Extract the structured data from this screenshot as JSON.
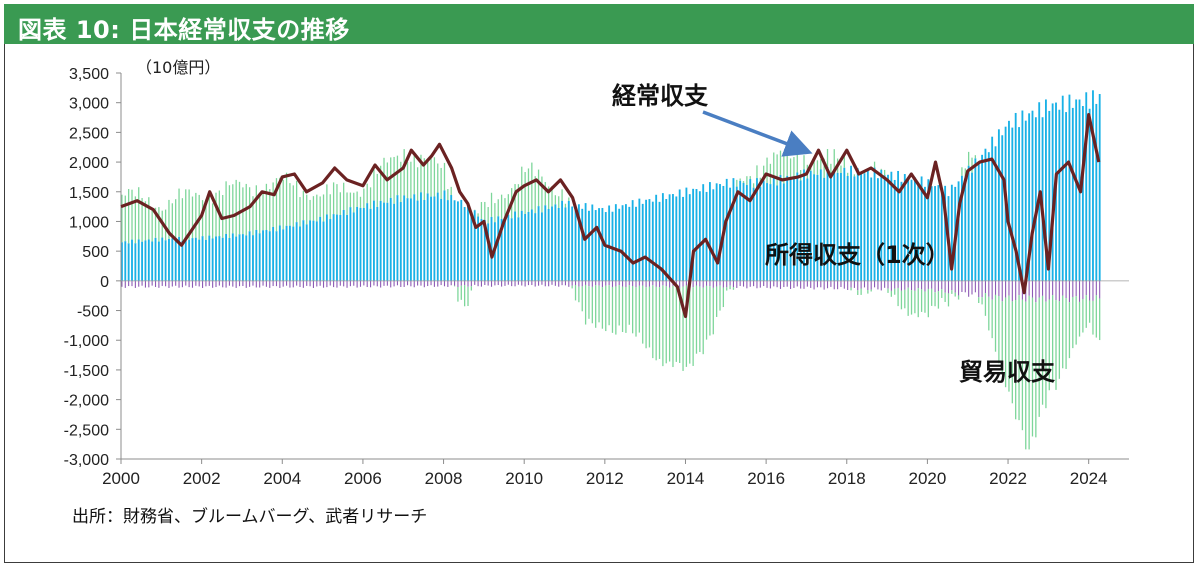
{
  "header": {
    "title": "図表 10: 日本経常収支の推移"
  },
  "source": "出所：財務省、ブルームバーグ、武者リサーチ",
  "chart_data": {
    "type": "bar",
    "unit_label": "（10億円）",
    "ylim": [
      -3000,
      3500
    ],
    "yticks": [
      -3000,
      -2500,
      -2000,
      -1500,
      -1000,
      -500,
      0,
      500,
      1000,
      1500,
      2000,
      2500,
      3000,
      3500
    ],
    "ytick_labels": [
      "-3,000",
      "-2,500",
      "-2,000",
      "-1,500",
      "-1,000",
      "-500",
      "0",
      "500",
      "1,000",
      "1,500",
      "2,000",
      "2,500",
      "3,000",
      "3,500"
    ],
    "xlim": [
      2000,
      2025
    ],
    "xticks": [
      2000,
      2002,
      2004,
      2006,
      2008,
      2010,
      2012,
      2014,
      2016,
      2018,
      2020,
      2022,
      2024
    ],
    "xtick_labels": [
      "2000",
      "2002",
      "2004",
      "2006",
      "2008",
      "2010",
      "2012",
      "2014",
      "2016",
      "2018",
      "2020",
      "2022",
      "2024"
    ],
    "annotations": [
      {
        "text": "経常収支",
        "arrow": true
      },
      {
        "text": "所得収支（1次）"
      },
      {
        "text": "貿易収支"
      }
    ],
    "colors": {
      "income": "#19b1e6",
      "trade": "#7dd69a",
      "services": "#8e5bb5",
      "current_account": "#6b2222",
      "arrow": "#4a7ec2",
      "header": "#3a9a52"
    },
    "series": [
      {
        "key": "income",
        "x": [
          2000.0,
          2001.0,
          2002.0,
          2003.0,
          2004.0,
          2005.0,
          2006.0,
          2007.0,
          2008.0,
          2008.5,
          2009.0,
          2010.0,
          2011.0,
          2012.0,
          2013.0,
          2014.0,
          2015.0,
          2016.0,
          2017.0,
          2018.0,
          2019.0,
          2020.0,
          2020.5,
          2021.0,
          2022.0,
          2023.0,
          2024.0,
          2024.25
        ],
        "values": [
          650,
          700,
          720,
          780,
          900,
          1050,
          1250,
          1400,
          1450,
          1300,
          1000,
          1150,
          1300,
          1200,
          1350,
          1500,
          1650,
          1650,
          1800,
          1850,
          1800,
          1650,
          1500,
          1850,
          2650,
          2950,
          3050,
          3100
        ]
      },
      {
        "key": "trade",
        "x": [
          2000.0,
          2001.0,
          2002.0,
          2003.0,
          2004.0,
          2005.0,
          2006.0,
          2007.0,
          2008.0,
          2008.5,
          2009.0,
          2010.0,
          2011.0,
          2011.5,
          2012.0,
          2013.0,
          2014.0,
          2015.0,
          2016.0,
          2017.0,
          2018.0,
          2019.0,
          2020.0,
          2021.0,
          2022.0,
          2022.5,
          2023.0,
          2024.0,
          2024.25
        ],
        "values": [
          800,
          600,
          750,
          800,
          750,
          400,
          350,
          800,
          400,
          -300,
          200,
          700,
          200,
          -700,
          -600,
          -1000,
          -1500,
          -200,
          400,
          300,
          100,
          -100,
          -500,
          300,
          -1500,
          -2700,
          -1500,
          -500,
          -700
        ]
      },
      {
        "key": "services",
        "x": [
          2000.0,
          2005.0,
          2010.0,
          2015.0,
          2020.0,
          2022.0,
          2024.25
        ],
        "values": [
          -100,
          -100,
          -80,
          -100,
          -150,
          -300,
          -300
        ]
      },
      {
        "key": "current_account",
        "x": [
          2000.0,
          2000.4,
          2000.8,
          2001.2,
          2001.5,
          2001.8,
          2002.0,
          2002.2,
          2002.5,
          2002.8,
          2003.2,
          2003.5,
          2003.8,
          2004.0,
          2004.3,
          2004.6,
          2005.0,
          2005.3,
          2005.6,
          2006.0,
          2006.3,
          2006.6,
          2007.0,
          2007.2,
          2007.5,
          2007.7,
          2007.9,
          2008.2,
          2008.4,
          2008.6,
          2008.8,
          2009.0,
          2009.2,
          2009.5,
          2009.8,
          2010.0,
          2010.3,
          2010.6,
          2010.9,
          2011.0,
          2011.2,
          2011.5,
          2011.8,
          2012.0,
          2012.4,
          2012.7,
          2013.0,
          2013.4,
          2013.8,
          2014.0,
          2014.2,
          2014.5,
          2014.8,
          2015.0,
          2015.3,
          2015.6,
          2016.0,
          2016.4,
          2016.8,
          2017.0,
          2017.3,
          2017.6,
          2018.0,
          2018.3,
          2018.6,
          2019.0,
          2019.3,
          2019.6,
          2020.0,
          2020.2,
          2020.4,
          2020.6,
          2020.8,
          2021.0,
          2021.3,
          2021.6,
          2021.9,
          2022.0,
          2022.2,
          2022.4,
          2022.6,
          2022.8,
          2023.0,
          2023.2,
          2023.5,
          2023.8,
          2024.0,
          2024.25
        ],
        "values": [
          1250,
          1350,
          1200,
          800,
          600,
          900,
          1100,
          1500,
          1050,
          1100,
          1250,
          1500,
          1450,
          1750,
          1800,
          1500,
          1650,
          1900,
          1700,
          1600,
          1950,
          1700,
          1900,
          2200,
          1950,
          2100,
          2300,
          1900,
          1500,
          1300,
          900,
          1000,
          400,
          1000,
          1500,
          1600,
          1700,
          1500,
          1700,
          1600,
          1400,
          700,
          900,
          600,
          500,
          300,
          400,
          200,
          -100,
          -600,
          500,
          700,
          300,
          1000,
          1500,
          1350,
          1800,
          1700,
          1750,
          1800,
          2200,
          1750,
          2200,
          1800,
          1900,
          1700,
          1500,
          1800,
          1400,
          2000,
          1400,
          200,
          1300,
          1850,
          2000,
          2050,
          1700,
          1000,
          500,
          -200,
          800,
          1500,
          200,
          1800,
          2000,
          1500,
          2800,
          2000
        ]
      }
    ]
  }
}
